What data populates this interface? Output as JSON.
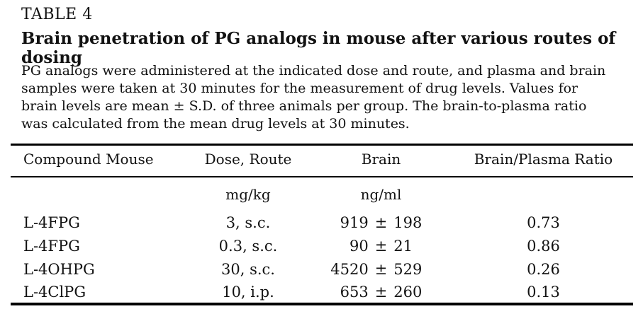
{
  "page": {
    "label": "TABLE 4",
    "title": "Brain penetration of PG analogs in mouse after various routes of dosing",
    "footnote_lines": [
      "PG analogs were administered at the indicated dose and route, and plasma and brain",
      "samples were taken at 30 minutes for the measurement of drug levels. Values for",
      "brain levels are mean ± S.D. of three animals per group. The brain-to-plasma ratio",
      "was calculated from the mean drug levels at 30 minutes."
    ]
  },
  "table": {
    "headers": [
      "Compound Mouse",
      "Dose, Route",
      "Brain",
      "Brain/Plasma Ratio"
    ],
    "units": {
      "dose": "mg/kg",
      "brain": "ng/ml"
    },
    "rows": [
      {
        "compound": "L-4FPG",
        "dose_route": "3, s.c.",
        "brain_mean": "919",
        "plus_minus": "±",
        "brain_sd": "198",
        "ratio": "0.73"
      },
      {
        "compound": "L-4FPG",
        "dose_route": "0.3, s.c.",
        "brain_mean": "90",
        "plus_minus": "±",
        "brain_sd": "21",
        "ratio": "0.86"
      },
      {
        "compound": "L-4OHPG",
        "dose_route": "30, s.c.",
        "brain_mean": "4520",
        "plus_minus": "±",
        "brain_sd": "529",
        "ratio": "0.26"
      },
      {
        "compound": "L-4ClPG",
        "dose_route": "10, i.p.",
        "brain_mean": "653",
        "plus_minus": "±",
        "brain_sd": "260",
        "ratio": "0.13"
      }
    ]
  }
}
